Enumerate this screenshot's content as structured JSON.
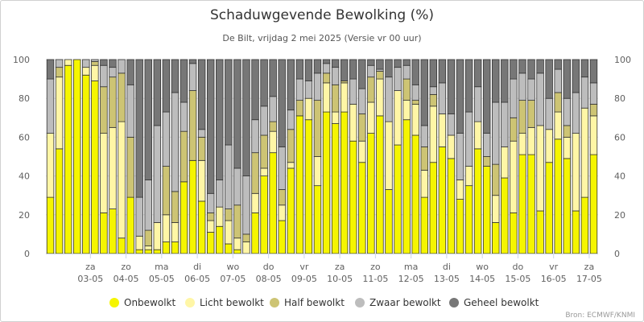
{
  "chart_data": {
    "type": "bar",
    "stacked": true,
    "title": "Schaduwgevende Bewolking (%)",
    "subtitle": "De Bilt, vrijdag 2 mei 2025 (Versie vr 00 uur)",
    "xlabel": "",
    "ylabel": "",
    "ylim": [
      0,
      100
    ],
    "y_ticks": [
      0,
      20,
      40,
      60,
      80,
      100
    ],
    "grid": "horizontal",
    "legend_position": "bottom",
    "credit": "Bron: ECMWF/KNMI",
    "colors": [
      "#f5f500",
      "#fff6a6",
      "#cdc474",
      "#bdbdbd",
      "#777777"
    ],
    "series": [
      {
        "name": "Onbewolkt",
        "values": [
          0,
          0,
          0,
          0,
          0,
          0,
          0,
          0,
          0,
          0,
          0,
          0,
          0,
          0,
          0,
          0,
          0,
          0,
          0,
          0,
          0,
          0,
          0,
          0,
          0,
          0,
          0,
          0,
          0,
          0,
          0,
          0,
          0,
          0,
          0,
          0,
          0,
          0,
          0,
          0,
          0,
          0,
          0,
          0,
          0,
          0,
          0,
          0,
          0,
          0,
          0,
          0,
          0,
          0,
          0,
          0,
          0,
          0,
          0,
          0,
          0,
          0,
          0,
          0,
          0,
          0,
          0,
          0,
          0,
          0,
          0,
          0,
          0,
          0,
          0,
          0,
          0,
          0,
          0,
          0,
          0,
          0,
          0,
          0,
          0,
          0,
          0,
          0,
          0,
          0,
          0,
          0,
          0,
          0,
          0,
          0,
          0,
          0,
          0,
          0,
          0,
          0,
          0,
          0,
          0,
          0,
          0,
          0,
          0,
          0,
          0,
          0
        ]
      },
      {
        "name": "Licht bewolkt",
        "values": [
          0
        ]
      },
      {
        "name": "Half bewolkt",
        "values": [
          0
        ]
      },
      {
        "name": "Zwaar bewolkt",
        "values": [
          0
        ]
      },
      {
        "name": "Geheel bewolkt",
        "values": [
          0
        ]
      }
    ],
    "bars": [
      [
        29,
        33,
        0,
        28,
        10
      ],
      [
        54,
        37,
        5,
        4,
        0
      ],
      [
        97,
        3,
        0,
        0,
        0
      ],
      [
        100,
        0,
        0,
        0,
        0
      ],
      [
        92,
        4,
        0,
        4,
        0
      ],
      [
        89,
        8,
        2,
        1,
        0
      ],
      [
        21,
        41,
        24,
        11,
        3
      ],
      [
        23,
        42,
        26,
        5,
        4
      ],
      [
        8,
        60,
        25,
        7,
        0
      ],
      [
        29,
        0,
        31,
        27,
        13
      ],
      [
        2,
        7,
        0,
        20,
        71
      ],
      [
        2,
        2,
        8,
        26,
        62
      ],
      [
        2,
        14,
        0,
        50,
        34
      ],
      [
        6,
        14,
        25,
        28,
        27
      ],
      [
        6,
        10,
        16,
        51,
        17
      ],
      [
        37,
        0,
        26,
        15,
        22
      ],
      [
        48,
        0,
        36,
        14,
        2
      ],
      [
        27,
        21,
        12,
        4,
        36
      ],
      [
        11,
        6,
        4,
        10,
        69
      ],
      [
        14,
        10,
        0,
        14,
        62
      ],
      [
        5,
        12,
        6,
        33,
        44
      ],
      [
        2,
        6,
        17,
        19,
        56
      ],
      [
        0,
        6,
        4,
        30,
        60
      ],
      [
        21,
        10,
        21,
        17,
        31
      ],
      [
        40,
        4,
        17,
        15,
        24
      ],
      [
        52,
        11,
        5,
        13,
        19
      ],
      [
        17,
        8,
        8,
        22,
        45
      ],
      [
        44,
        3,
        17,
        10,
        26
      ],
      [
        71,
        0,
        8,
        11,
        10
      ],
      [
        69,
        11,
        0,
        9,
        11
      ],
      [
        35,
        15,
        29,
        14,
        7
      ],
      [
        73,
        15,
        5,
        5,
        2
      ],
      [
        67,
        6,
        14,
        9,
        4
      ],
      [
        73,
        15,
        1,
        0,
        11
      ],
      [
        58,
        19,
        0,
        13,
        10
      ],
      [
        47,
        11,
        14,
        13,
        15
      ],
      [
        62,
        16,
        13,
        6,
        3
      ],
      [
        71,
        19,
        4,
        1,
        5
      ],
      [
        33,
        35,
        0,
        23,
        9
      ],
      [
        56,
        28,
        0,
        12,
        4
      ],
      [
        69,
        10,
        11,
        7,
        3
      ],
      [
        61,
        16,
        2,
        8,
        13
      ],
      [
        29,
        14,
        12,
        11,
        34
      ],
      [
        47,
        29,
        6,
        4,
        14
      ],
      [
        55,
        17,
        0,
        16,
        12
      ],
      [
        49,
        12,
        0,
        11,
        28
      ],
      [
        28,
        10,
        0,
        24,
        38
      ],
      [
        35,
        10,
        0,
        28,
        27
      ],
      [
        54,
        14,
        0,
        18,
        14
      ],
      [
        45,
        0,
        5,
        12,
        38
      ],
      [
        16,
        14,
        16,
        32,
        22
      ],
      [
        39,
        16,
        0,
        23,
        22
      ],
      [
        21,
        37,
        12,
        20,
        10
      ],
      [
        51,
        11,
        17,
        14,
        7
      ],
      [
        51,
        14,
        14,
        11,
        10
      ],
      [
        22,
        44,
        0,
        27,
        7
      ],
      [
        47,
        17,
        0,
        16,
        20
      ],
      [
        59,
        14,
        10,
        12,
        5
      ],
      [
        49,
        11,
        6,
        14,
        20
      ],
      [
        22,
        40,
        0,
        21,
        17
      ],
      [
        29,
        46,
        0,
        16,
        9
      ],
      [
        51,
        20,
        6,
        11,
        12
      ]
    ],
    "bars_note": "",
    "day_labels": [
      {
        "day": "za",
        "date": "03-05",
        "bar": 5
      },
      {
        "day": "zo",
        "date": "04-05",
        "bar": 9
      },
      {
        "day": "ma",
        "date": "05-05",
        "bar": 13
      },
      {
        "day": "di",
        "date": "06-05",
        "bar": 17
      },
      {
        "day": "wo",
        "date": "07-05",
        "bar": 21
      },
      {
        "day": "do",
        "date": "08-05",
        "bar": 25
      },
      {
        "day": "vr",
        "date": "09-05",
        "bar": 29
      },
      {
        "day": "za",
        "date": "10-05",
        "bar": 33
      },
      {
        "day": "zo",
        "date": "11-05",
        "bar": 37
      },
      {
        "day": "ma",
        "date": "12-05",
        "bar": 41
      },
      {
        "day": "di",
        "date": "13-05",
        "bar": 45
      },
      {
        "day": "wo",
        "date": "14-05",
        "bar": 49
      },
      {
        "day": "do",
        "date": "15-05",
        "bar": 53
      },
      {
        "day": "vr",
        "date": "16-05",
        "bar": 57
      },
      {
        "day": "za",
        "date": "17-05",
        "bar": 61
      }
    ]
  }
}
